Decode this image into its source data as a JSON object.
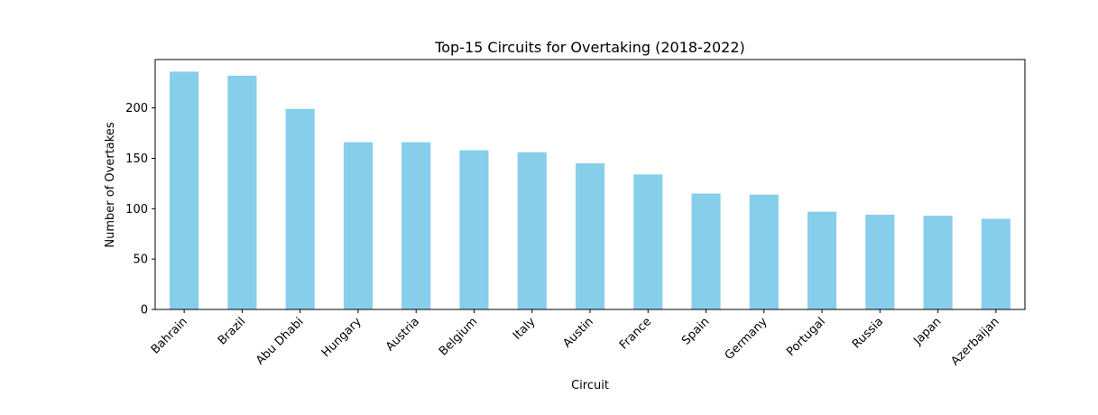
{
  "chart_data": {
    "type": "bar",
    "title": "Top-15 Circuits for Overtaking (2018-2022)",
    "xlabel": "Circuit",
    "ylabel": "Number of Overtakes",
    "categories": [
      "Bahrain",
      "Brazil",
      "Abu Dhabi",
      "Hungary",
      "Austria",
      "Belgium",
      "Italy",
      "Austin",
      "France",
      "Spain",
      "Germany",
      "Portugal",
      "Russia",
      "Japan",
      "Azerbaijan"
    ],
    "values": [
      236,
      232,
      199,
      166,
      166,
      158,
      156,
      145,
      134,
      115,
      114,
      97,
      94,
      93,
      90
    ],
    "ylim": [
      0,
      248
    ],
    "yticks": [
      0,
      50,
      100,
      150,
      200
    ],
    "bar_color": "#87ceeb",
    "grid": false,
    "legend": "none"
  }
}
